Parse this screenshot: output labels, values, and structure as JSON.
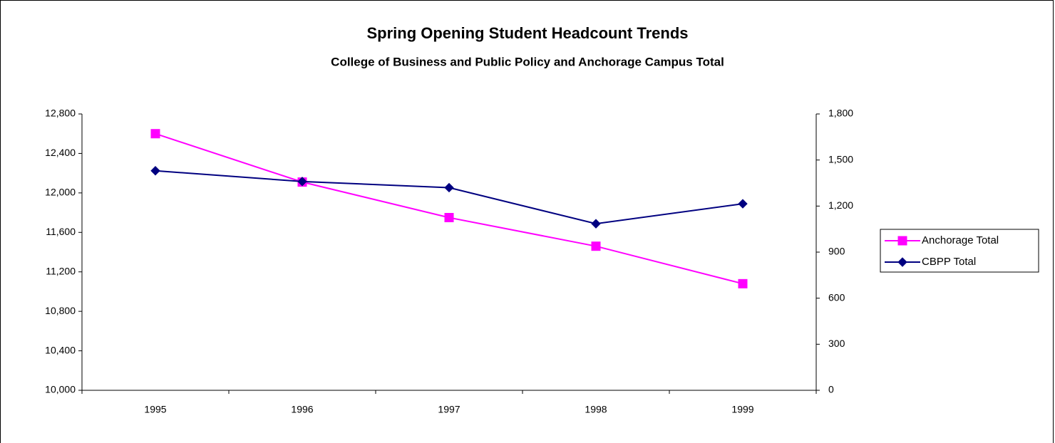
{
  "chart_data": {
    "type": "line",
    "title": "Spring Opening Student Headcount Trends",
    "subtitle": "College of Business and Public Policy and Anchorage Campus Total",
    "categories": [
      "1995",
      "1996",
      "1997",
      "1998",
      "1999"
    ],
    "series": [
      {
        "name": "Anchorage Total",
        "color": "#ff00ff",
        "marker": "square",
        "values": [
          12600,
          12110,
          11750,
          11460,
          11080
        ]
      },
      {
        "name": "CBPP Total",
        "color": "#000080",
        "marker": "diamond",
        "axis": "y2",
        "values": [
          1430,
          1360,
          1320,
          1085,
          1215
        ]
      }
    ],
    "ylim": [
      10000,
      12800
    ],
    "yticks": [
      {
        "value": 10000,
        "label": "10,000"
      },
      {
        "value": 10400,
        "label": "10,400"
      },
      {
        "value": 10800,
        "label": "10,800"
      },
      {
        "value": 11200,
        "label": "11,200"
      },
      {
        "value": 11600,
        "label": "11,600"
      },
      {
        "value": 12000,
        "label": "12,000"
      },
      {
        "value": 12400,
        "label": "12,400"
      },
      {
        "value": 12800,
        "label": "12,800"
      }
    ],
    "y2lim": [
      0,
      1800
    ],
    "y2ticks": [
      0,
      300,
      600,
      900,
      {
        "value": 1200,
        "label": "1,200"
      },
      {
        "value": 1500,
        "label": "1,500"
      },
      {
        "value": 1800,
        "label": "1,800"
      }
    ],
    "grid": false,
    "legend": "right"
  }
}
